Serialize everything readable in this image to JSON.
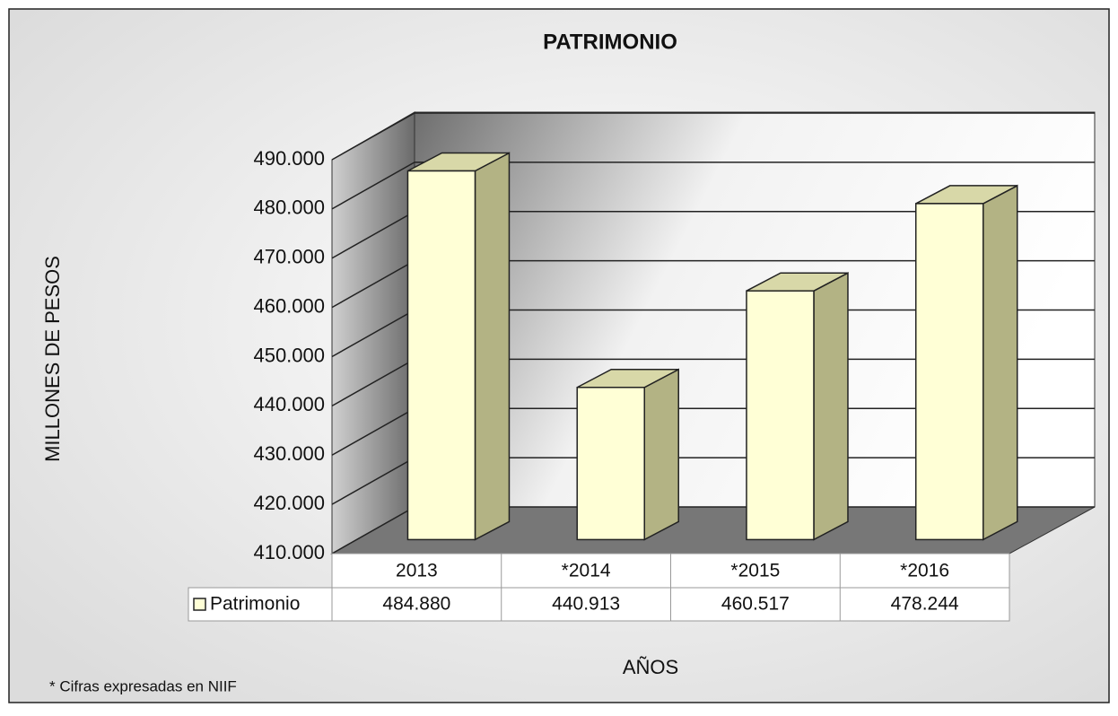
{
  "chart_data": {
    "type": "bar3d",
    "title": "PATRIMONIO",
    "y_label": "MILLONES DE PESOS",
    "x_label": "AÑOS",
    "note": "* Cifras expresadas en NIIF",
    "categories": [
      "2013",
      "*2014",
      "*2015",
      "*2016"
    ],
    "series": [
      {
        "name": "Patrimonio",
        "color": "#ffffd6",
        "values": [
          484880,
          440913,
          460517,
          478244
        ],
        "value_labels": [
          "484.880",
          "440.913",
          "460.517",
          "478.244"
        ]
      }
    ],
    "ylim": [
      410000,
      490000
    ],
    "yticks": [
      {
        "value": 410000,
        "label": "410.000"
      },
      {
        "value": 420000,
        "label": "420.000"
      },
      {
        "value": 430000,
        "label": "430.000"
      },
      {
        "value": 440000,
        "label": "440.000"
      },
      {
        "value": 450000,
        "label": "450.000"
      },
      {
        "value": 460000,
        "label": "460.000"
      },
      {
        "value": 470000,
        "label": "470.000"
      },
      {
        "value": 480000,
        "label": "480.000"
      },
      {
        "value": 490000,
        "label": "490.000"
      }
    ],
    "grid": true
  }
}
